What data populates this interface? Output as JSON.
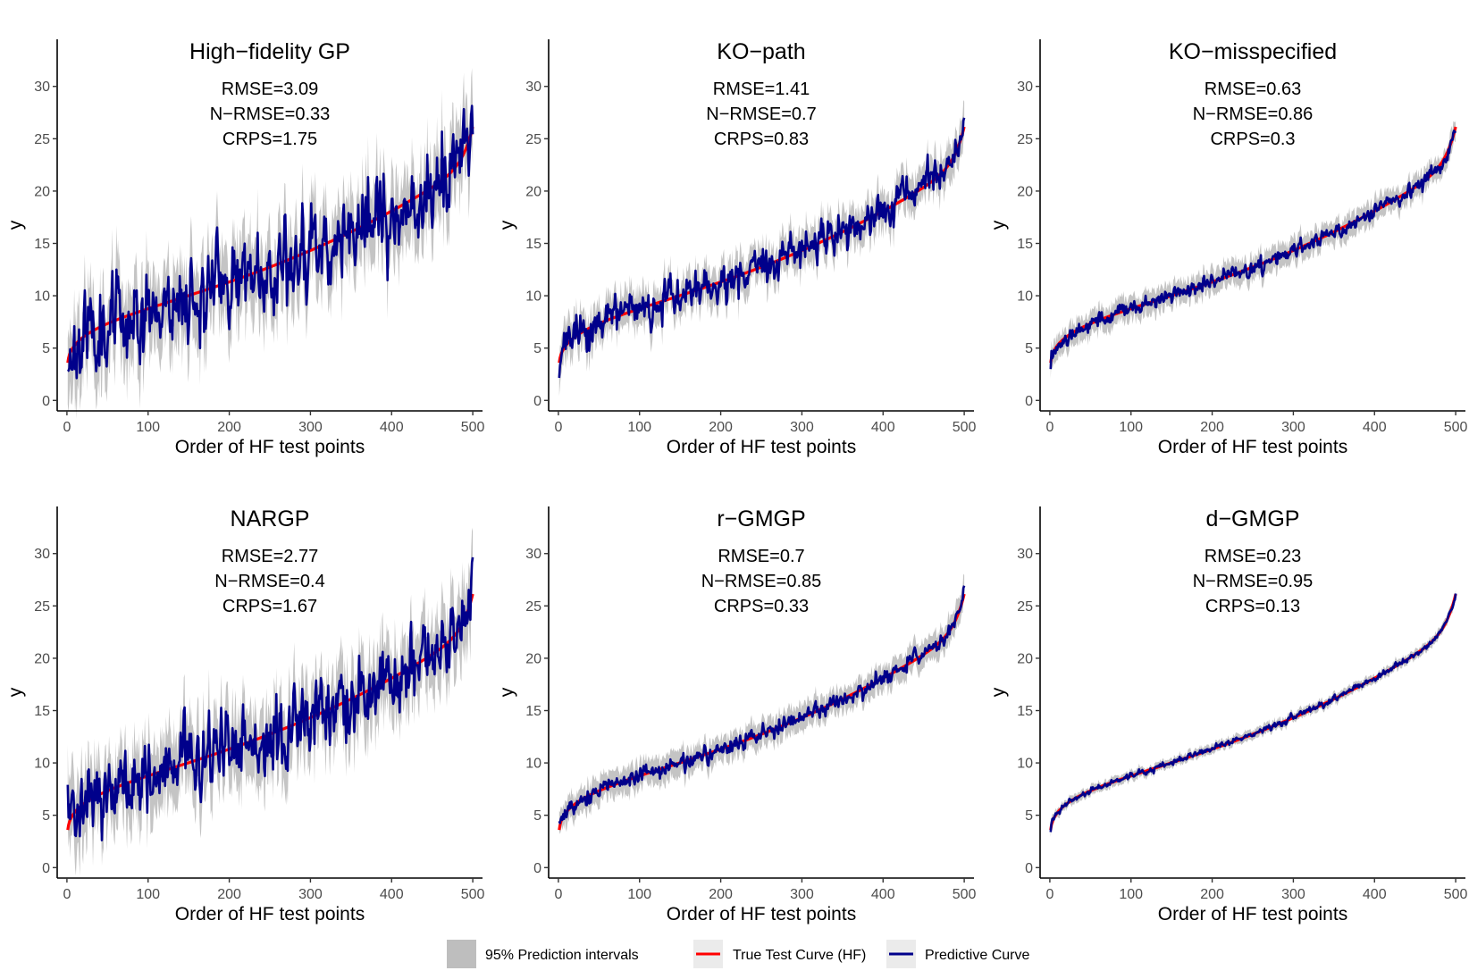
{
  "legend": {
    "items": [
      {
        "label": "95% Prediction intervals",
        "kind": "band",
        "color": "#bebebe"
      },
      {
        "label": "True Test Curve (HF)",
        "kind": "line",
        "color": "#ff0000"
      },
      {
        "label": "Predictive Curve",
        "kind": "line",
        "color": "#00008b"
      }
    ]
  },
  "colors": {
    "band": "#bebebe",
    "truth": "#ff0000",
    "prediction": "#00008b",
    "legend_key_bg": "#ebebeb"
  },
  "chart_data": [
    {
      "type": "line",
      "title": "High−fidelity GP",
      "rmse_text": "RMSE=3.09",
      "nrmse_text": "N−RMSE=0.33",
      "crps_text": "CRPS=1.75",
      "xlabel": "Order of HF test points",
      "ylabel": "y",
      "xlim": [
        -12,
        512
      ],
      "ylim": [
        -1,
        34.5
      ],
      "xticks": [
        0,
        100,
        200,
        300,
        400,
        500
      ],
      "yticks": [
        0,
        5,
        10,
        15,
        20,
        25,
        30
      ],
      "grid": false,
      "n_points": 500,
      "prediction_noise_sd": 2.9,
      "band_halfwidth": 3.4,
      "seed": 11
    },
    {
      "type": "line",
      "title": "KO−path",
      "rmse_text": "RMSE=1.41",
      "nrmse_text": "N−RMSE=0.7",
      "crps_text": "CRPS=0.83",
      "xlabel": "Order of HF test points",
      "ylabel": "y",
      "xlim": [
        -12,
        512
      ],
      "ylim": [
        -1,
        34.5
      ],
      "xticks": [
        0,
        100,
        200,
        300,
        400,
        500
      ],
      "yticks": [
        0,
        5,
        10,
        15,
        20,
        25,
        30
      ],
      "grid": false,
      "n_points": 500,
      "prediction_noise_sd": 1.3,
      "band_halfwidth": 1.7,
      "seed": 23
    },
    {
      "type": "line",
      "title": "KO−misspecified",
      "rmse_text": "RMSE=0.63",
      "nrmse_text": "N−RMSE=0.86",
      "crps_text": "CRPS=0.3",
      "xlabel": "Order of HF test points",
      "ylabel": "y",
      "xlim": [
        -12,
        512
      ],
      "ylim": [
        -1,
        34.5
      ],
      "xticks": [
        0,
        100,
        200,
        300,
        400,
        500
      ],
      "yticks": [
        0,
        5,
        10,
        15,
        20,
        25,
        30
      ],
      "grid": false,
      "n_points": 500,
      "prediction_noise_sd": 0.55,
      "band_halfwidth": 1.1,
      "seed": 37
    },
    {
      "type": "line",
      "title": "NARGP",
      "rmse_text": "RMSE=2.77",
      "nrmse_text": "N−RMSE=0.4",
      "crps_text": "CRPS=1.67",
      "xlabel": "Order of HF test points",
      "ylabel": "y",
      "xlim": [
        -12,
        512
      ],
      "ylim": [
        -1,
        34.5
      ],
      "xticks": [
        0,
        100,
        200,
        300,
        400,
        500
      ],
      "yticks": [
        0,
        5,
        10,
        15,
        20,
        25,
        30
      ],
      "grid": false,
      "n_points": 500,
      "prediction_noise_sd": 2.6,
      "band_halfwidth": 3.2,
      "seed": 41
    },
    {
      "type": "line",
      "title": "r−GMGP",
      "rmse_text": "RMSE=0.7",
      "nrmse_text": "N−RMSE=0.85",
      "crps_text": "CRPS=0.33",
      "xlabel": "Order of HF test points",
      "ylabel": "y",
      "xlim": [
        -12,
        512
      ],
      "ylim": [
        -1,
        34.5
      ],
      "xticks": [
        0,
        100,
        200,
        300,
        400,
        500
      ],
      "yticks": [
        0,
        5,
        10,
        15,
        20,
        25,
        30
      ],
      "grid": false,
      "n_points": 500,
      "prediction_noise_sd": 0.6,
      "band_halfwidth": 1.2,
      "seed": 53
    },
    {
      "type": "line",
      "title": "d−GMGP",
      "rmse_text": "RMSE=0.23",
      "nrmse_text": "N−RMSE=0.95",
      "crps_text": "CRPS=0.13",
      "xlabel": "Order of HF test points",
      "ylabel": "y",
      "xlim": [
        -12,
        512
      ],
      "ylim": [
        -1,
        34.5
      ],
      "xticks": [
        0,
        100,
        200,
        300,
        400,
        500
      ],
      "yticks": [
        0,
        5,
        10,
        15,
        20,
        25,
        30
      ],
      "grid": false,
      "n_points": 500,
      "prediction_noise_sd": 0.2,
      "band_halfwidth": 0.45,
      "seed": 67
    }
  ]
}
